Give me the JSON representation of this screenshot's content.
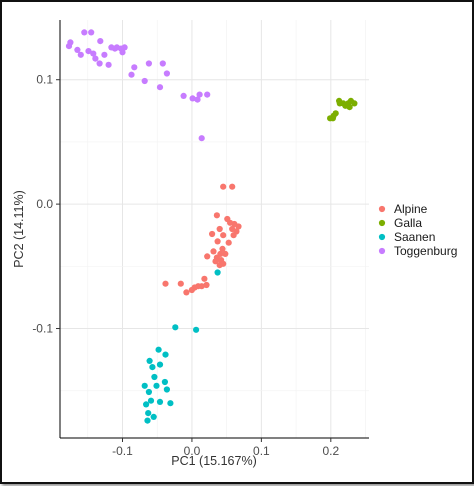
{
  "chart_data": {
    "type": "scatter",
    "xlabel": "PC1 (15.167%)",
    "ylabel": "PC2 (14.11%)",
    "xlim": [
      -0.19,
      0.255
    ],
    "ylim": [
      -0.188,
      0.148
    ],
    "x_ticks": [
      -0.1,
      0.0,
      0.1,
      0.2
    ],
    "x_tick_labels": [
      "-0.1",
      "0.0",
      "0.1",
      "0.2"
    ],
    "y_ticks": [
      -0.1,
      0.0,
      0.1
    ],
    "y_tick_labels": [
      "-0.1",
      "0.0",
      "0.1"
    ],
    "grid": true,
    "legend_position": "right",
    "colors": {
      "Alpine": "#F8766D",
      "Galla": "#7CAE00",
      "Saanen": "#00BFC4",
      "Toggenburg": "#C77CFF"
    },
    "series": [
      {
        "name": "Alpine",
        "points": [
          [
            0.045,
            0.014
          ],
          [
            0.058,
            0.014
          ],
          [
            0.036,
            -0.009
          ],
          [
            0.051,
            -0.012
          ],
          [
            0.055,
            -0.015
          ],
          [
            0.061,
            -0.016
          ],
          [
            0.067,
            -0.018
          ],
          [
            0.04,
            -0.02
          ],
          [
            0.058,
            -0.02
          ],
          [
            0.064,
            -0.022
          ],
          [
            0.029,
            -0.024
          ],
          [
            0.045,
            -0.025
          ],
          [
            0.06,
            -0.025
          ],
          [
            0.037,
            -0.03
          ],
          [
            0.053,
            -0.031
          ],
          [
            0.044,
            -0.036
          ],
          [
            0.031,
            -0.038
          ],
          [
            0.041,
            -0.04
          ],
          [
            0.048,
            -0.04
          ],
          [
            0.022,
            -0.042
          ],
          [
            0.036,
            -0.043
          ],
          [
            0.042,
            -0.045
          ],
          [
            0.034,
            -0.046
          ],
          [
            0.04,
            -0.049
          ],
          [
            0.045,
            -0.048
          ],
          [
            0.018,
            -0.06
          ],
          [
            0.021,
            -0.065
          ],
          [
            0.014,
            -0.066
          ],
          [
            0.009,
            -0.066
          ],
          [
            0.004,
            -0.067
          ],
          [
            0.0,
            -0.069
          ],
          [
            -0.016,
            -0.064
          ],
          [
            -0.008,
            -0.071
          ],
          [
            -0.038,
            -0.064
          ]
        ]
      },
      {
        "name": "Galla",
        "points": [
          [
            0.203,
            0.069
          ],
          [
            0.204,
            0.071
          ],
          [
            0.207,
            0.073
          ],
          [
            0.213,
            0.081
          ],
          [
            0.212,
            0.083
          ],
          [
            0.218,
            0.081
          ],
          [
            0.221,
            0.079
          ],
          [
            0.225,
            0.081
          ],
          [
            0.229,
            0.083
          ],
          [
            0.234,
            0.081
          ],
          [
            0.227,
            0.078
          ],
          [
            0.199,
            0.069
          ]
        ]
      },
      {
        "name": "Saanen",
        "points": [
          [
            0.037,
            -0.055
          ],
          [
            -0.024,
            -0.099
          ],
          [
            0.006,
            -0.101
          ],
          [
            -0.048,
            -0.117
          ],
          [
            -0.038,
            -0.121
          ],
          [
            -0.061,
            -0.126
          ],
          [
            -0.046,
            -0.129
          ],
          [
            -0.057,
            -0.131
          ],
          [
            -0.054,
            -0.139
          ],
          [
            -0.039,
            -0.143
          ],
          [
            -0.051,
            -0.146
          ],
          [
            -0.068,
            -0.146
          ],
          [
            -0.062,
            -0.151
          ],
          [
            -0.036,
            -0.149
          ],
          [
            -0.059,
            -0.158
          ],
          [
            -0.046,
            -0.159
          ],
          [
            -0.066,
            -0.161
          ],
          [
            -0.031,
            -0.16
          ],
          [
            -0.063,
            -0.168
          ],
          [
            -0.055,
            -0.171
          ],
          [
            -0.064,
            -0.174
          ]
        ]
      },
      {
        "name": "Toggenburg",
        "points": [
          [
            -0.175,
            0.13
          ],
          [
            -0.177,
            0.127
          ],
          [
            -0.165,
            0.124
          ],
          [
            -0.155,
            0.138
          ],
          [
            -0.145,
            0.138
          ],
          [
            -0.132,
            0.131
          ],
          [
            -0.16,
            0.12
          ],
          [
            -0.149,
            0.123
          ],
          [
            -0.142,
            0.121
          ],
          [
            -0.139,
            0.117
          ],
          [
            -0.126,
            0.12
          ],
          [
            -0.116,
            0.126
          ],
          [
            -0.108,
            0.126
          ],
          [
            -0.102,
            0.125
          ],
          [
            -0.097,
            0.126
          ],
          [
            -0.111,
            0.125
          ],
          [
            -0.1,
            0.122
          ],
          [
            -0.133,
            0.113
          ],
          [
            -0.12,
            0.112
          ],
          [
            -0.083,
            0.11
          ],
          [
            -0.062,
            0.113
          ],
          [
            -0.042,
            0.113
          ],
          [
            -0.036,
            0.105
          ],
          [
            -0.087,
            0.104
          ],
          [
            -0.068,
            0.099
          ],
          [
            -0.046,
            0.094
          ],
          [
            -0.012,
            0.087
          ],
          [
            0.001,
            0.085
          ],
          [
            0.011,
            0.088
          ],
          [
            0.022,
            0.088
          ],
          [
            0.008,
            0.084
          ],
          [
            0.014,
            0.053
          ]
        ]
      }
    ]
  }
}
